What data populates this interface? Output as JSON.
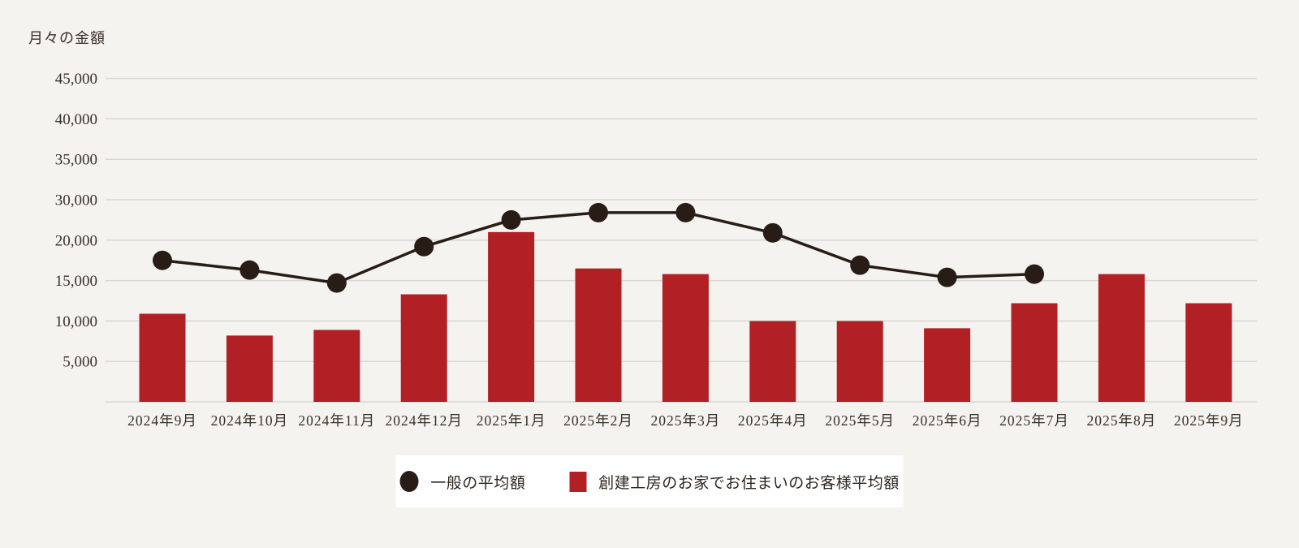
{
  "chart_title": "月々の金額",
  "colors": {
    "background": "#f4f3ef",
    "bar": "#b12025",
    "line": "#281c17",
    "gridline": "#d9d7d3",
    "axis_text": "#38302a",
    "legend_background": "#ffffff"
  },
  "legend": {
    "items": [
      {
        "label": "一般の平均額",
        "marker": "circle",
        "color": "#281c17"
      },
      {
        "label": "創建工房のお家でお住まいのお客様平均額",
        "marker": "square",
        "color": "#b12025"
      }
    ]
  },
  "chart_data": {
    "type": "bar",
    "subtype": "combo-bar-line",
    "title": "月々の金額",
    "xlabel": "",
    "ylabel": "月々の金額",
    "grid": true,
    "legend_position": "bottom-center",
    "ylim": [
      0,
      45000
    ],
    "y_tick_labels_top_to_bottom": [
      "45,000",
      "40,000",
      "35,000",
      "30,000",
      "20,000",
      "15,000",
      "10,000",
      "5,000"
    ],
    "axis_note": "gridlines evenly spaced every 5,000; the 25,000 label is skipped in the source image",
    "categories": [
      "2024年9月",
      "2024年10月",
      "2024年11月",
      "2024年12月",
      "2025年1月",
      "2025年2月",
      "2025年3月",
      "2025年4月",
      "2025年5月",
      "2025年6月",
      "2025年7月",
      "2025年8月",
      "2025年9月"
    ],
    "series": [
      {
        "name": "一般の平均額",
        "type": "line",
        "color": "#281c17",
        "values": [
          17500,
          16300,
          14700,
          19200,
          22500,
          23400,
          23400,
          20900,
          16900,
          15400,
          15800,
          null,
          null
        ]
      },
      {
        "name": "創建工房のお家でお住まいのお客様平均額",
        "type": "bar",
        "color": "#b12025",
        "values": [
          10900,
          8200,
          8900,
          13300,
          21000,
          16500,
          15800,
          10000,
          10000,
          9100,
          12200,
          15800,
          12200
        ]
      }
    ]
  }
}
